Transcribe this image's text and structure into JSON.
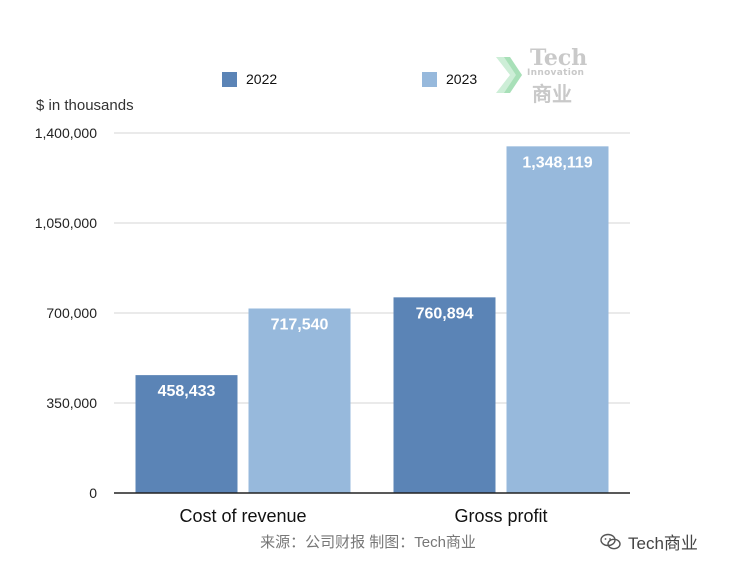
{
  "chart_data": {
    "type": "bar",
    "categories": [
      "Cost of revenue",
      "Gross profit"
    ],
    "series": [
      {
        "name": "2022",
        "values": [
          458433,
          760894
        ],
        "labels": [
          "458,433",
          "760,894"
        ],
        "color": "#5b84b6"
      },
      {
        "name": "2023",
        "values": [
          717540,
          1348119
        ],
        "labels": [
          "717,540",
          "1,348,119"
        ],
        "color": "#97b9dc"
      }
    ],
    "ylabel": "$ in thousands",
    "ylim": [
      0,
      1400000
    ],
    "yticks": [
      0,
      350000,
      700000,
      1050000,
      1400000
    ],
    "ytick_labels": [
      "0",
      "350,000",
      "700,000",
      "1,050,000",
      "1,400,000"
    ],
    "grid": true,
    "legend_position": "top"
  },
  "legend": {
    "items": [
      "2022",
      "2023"
    ]
  },
  "source_text": "来源：公司财报  制图：Tech商业",
  "logo": {
    "line1": "Tech",
    "line2": "Innovation",
    "line3": "商业"
  },
  "watermark": "Tech商业",
  "colors": {
    "axis": "#222222",
    "grid": "#d6d6d6"
  }
}
